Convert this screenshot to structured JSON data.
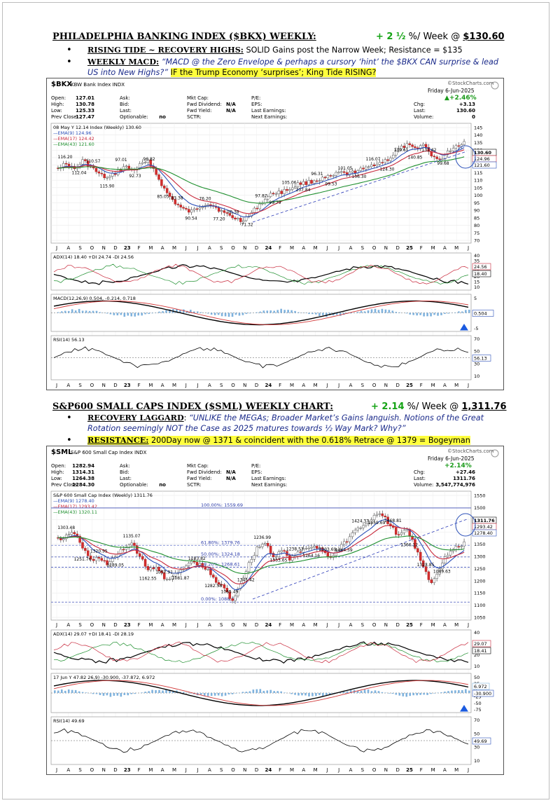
{
  "sections": [
    {
      "title": "PHILADELPHIA BANKING INDEX ($BKX) WEEKLY:",
      "gain_value": "+ 2 ½",
      "gain_suffix": " %/ Week @ ",
      "price": "$130.60",
      "bullets": [
        {
          "label": "RISING TIDE ~ RECOVERY HIGHS:",
          "text": " SOLID Gains post the Narrow Week; Resistance = $135"
        },
        {
          "label": "WEEKLY MACD:",
          "italic": " “MACD @ the Zero Envelope & perhaps a cursory ‘hint’ the $BKX CAN surprise & lead US into New Highs?”",
          "highlight": "IF the Trump Economy ‘surprises’; King Tide RISING?"
        }
      ]
    },
    {
      "title": "S&P600 SMALL CAPS INDEX ($SML) WEEKLY CHART:",
      "gain_value": "+ 2.14",
      "gain_suffix": " %/ Week @ ",
      "price": "1,311.76",
      "bullets": [
        {
          "label": "RECOVERY LAGGARD",
          "text": ": ",
          "italic": "“UNLIKE the MEGAs; Broader Market’s Gains languish. Notions of the Great Rotation seemingly NOT the Case as 2025 matures towards ½ Way Mark? Why?”"
        },
        {
          "label": "RESISTANCE:",
          "highlight": " 200Day now @ 1371 & coincident with the 0.618% Retrace @ 1379 =  Bogeyman"
        }
      ]
    }
  ],
  "charts": [
    {
      "ticker": "$BKX",
      "name": "KBW Bank Index INDX",
      "date": "Friday  6-Jun-2025",
      "change_pct": "▲+2.46%",
      "brand": "©StockCharts.com",
      "quote_left": [
        [
          "Open:",
          "127.01"
        ],
        [
          "High:",
          "130.78"
        ],
        [
          "Low:",
          "125.33"
        ],
        [
          "Prev Close:",
          "127.47"
        ]
      ],
      "quote_mid": [
        [
          "Ask:",
          ""
        ],
        [
          "Bid:",
          ""
        ],
        [
          "Last:",
          ""
        ],
        [
          "Optionable:",
          "no"
        ]
      ],
      "quote_mid2": [
        [
          "Mkt Cap:",
          ""
        ],
        [
          "Fwd Dividend:",
          "N/A"
        ],
        [
          "Fwd Yield:",
          "N/A"
        ],
        [
          "SCTR:",
          ""
        ]
      ],
      "quote_right": [
        [
          "P/E:",
          ""
        ],
        [
          "EPS:",
          ""
        ],
        [
          "Last Earnings:",
          ""
        ],
        [
          "Next Earnings:",
          ""
        ]
      ],
      "quote_far": [
        [
          "Chg:",
          "+3.13"
        ],
        [
          "Last:",
          "130.60"
        ],
        [
          "Volume:",
          "0"
        ]
      ],
      "legend": [
        "08 May Y 12.14 Index (Weekly) 130.60",
        "EMA(9) 124.96",
        "EMA(17) 124.42",
        "EMA(43) 121.60"
      ],
      "price_ticks": [
        "145",
        "140",
        "135",
        "130",
        "125",
        "120",
        "115",
        "110",
        "105",
        "100",
        "95",
        "90",
        "85",
        "80",
        "75",
        "70"
      ],
      "annotations": [
        "116.20",
        "112.04",
        "110.57",
        "115.90",
        "97.01",
        "92.73",
        "96.82",
        "85.05",
        "83.38",
        "90.54",
        "76.20",
        "77.20",
        "70.38",
        "71.32",
        "97.87",
        "99.79",
        "105.06",
        "107.84",
        "96.31",
        "99.53",
        "101.05",
        "106.30",
        "116.07",
        "124.30",
        "139.61",
        "140.85",
        "131.42",
        "99.68"
      ],
      "last_labels": [
        "130.60",
        "124.96",
        "121.60"
      ],
      "months": [
        "J",
        "A",
        "S",
        "O",
        "N",
        "D",
        "23",
        "F",
        "M",
        "A",
        "M",
        "J",
        "J",
        "A",
        "S",
        "O",
        "N",
        "D",
        "24",
        "F",
        "M",
        "A",
        "M",
        "J",
        "J",
        "A",
        "S",
        "O",
        "N",
        "D",
        "25",
        "F",
        "M",
        "A",
        "M",
        "J"
      ],
      "adx_label": "ADX(14) 18.40 +DI 24.74 -DI 24.56",
      "adx_ticks": [
        "40",
        "35",
        "30",
        "25",
        "20",
        "15",
        "10"
      ],
      "adx_values": [
        "24.56",
        "18.40"
      ],
      "macd_label": "MACD(12,26,9) 0.504, -0.214, 0.718",
      "macd_ticks": [
        "5",
        "0",
        "-5"
      ],
      "macd_value": "0.504",
      "rsi_label": "RSI(14) 56.13",
      "rsi_ticks": [
        "70",
        "50",
        "30",
        "10"
      ],
      "rsi_value": "56.13"
    },
    {
      "ticker": "$SML",
      "name": "S&P 600 Small Cap Index INDX",
      "date": "Friday  6-Jun-2025",
      "change_pct": "+2.14%",
      "brand": "©StockCharts.com",
      "quote_left": [
        [
          "Open:",
          "1282.94"
        ],
        [
          "High:",
          "1314.31"
        ],
        [
          "Low:",
          "1264.38"
        ],
        [
          "Prev Close:",
          "1284.30"
        ]
      ],
      "quote_mid": [
        [
          "Ask:",
          ""
        ],
        [
          "Bid:",
          ""
        ],
        [
          "Last:",
          ""
        ],
        [
          "Optionable:",
          "no"
        ]
      ],
      "quote_mid2": [
        [
          "Mkt Cap:",
          ""
        ],
        [
          "Fwd Dividend:",
          "N/A"
        ],
        [
          "Fwd Yield:",
          "N/A"
        ],
        [
          "SCTR:",
          ""
        ]
      ],
      "quote_right": [
        [
          "P/E:",
          ""
        ],
        [
          "EPS:",
          ""
        ],
        [
          "Last Earnings:",
          ""
        ],
        [
          "Next Earnings:",
          ""
        ]
      ],
      "quote_far": [
        [
          "Chg:",
          "+27.46"
        ],
        [
          "Last:",
          "1311.76"
        ],
        [
          "Volume:",
          "3,547,774,976"
        ]
      ],
      "legend": [
        "S&P 600 Small Cap Index (Weekly) 1311.76",
        "EMA(9) 1278.40",
        "EMA(17) 1293.42",
        "EMA(43) 1320.11"
      ],
      "price_ticks": [
        "1550",
        "1500",
        "1450",
        "1400",
        "1350",
        "1300",
        "1250",
        "1200",
        "1150",
        "1100",
        "1050"
      ],
      "fib_labels": [
        "100.00%: 1559.69",
        "61.80%: 1379.76",
        "50.00%: 1324.18",
        "38.20%: 1268.61",
        "0.00%: 1088.68"
      ],
      "annotations": [
        "1303.48",
        "1251.76",
        "1320.95",
        "1189.05",
        "1135.07",
        "1162.55",
        "1057.91",
        "1081.87",
        "1183.82",
        "1282.58",
        "1065.49",
        "1345.42",
        "1236.99",
        "1353.65",
        "1238.53",
        "1264.16",
        "1303.69",
        "1464.59",
        "1424.37",
        "1559.69",
        "1468.81",
        "1366.12",
        "1323.85",
        "1089.63"
      ],
      "last_labels": [
        "1311.76",
        "1293.42",
        "1278.40"
      ],
      "months": [
        "J",
        "A",
        "S",
        "O",
        "N",
        "D",
        "23",
        "F",
        "M",
        "A",
        "M",
        "J",
        "J",
        "A",
        "S",
        "O",
        "N",
        "D",
        "24",
        "F",
        "M",
        "A",
        "M",
        "J",
        "J",
        "A",
        "S",
        "O",
        "N",
        "D",
        "25",
        "F",
        "M",
        "A",
        "M",
        "J"
      ],
      "adx_label": "ADX(14) 29.07 +DI 18.41 -DI 28.19",
      "adx_ticks": [
        "40",
        "30",
        "20",
        "10"
      ],
      "adx_values": [
        "29.07",
        "18.41"
      ],
      "macd_label": "17 Jun Y 47.82 26,9) -30.900, -37.872, 6.972",
      "macd_ticks": [
        "50",
        "25",
        "0",
        "-25",
        "-50",
        "-75"
      ],
      "macd_value": "-30.900",
      "macd_value2": "6.972",
      "rsi_label": "RSI(14) 49.69",
      "rsi_ticks": [
        "70",
        "50",
        "30",
        "10"
      ],
      "rsi_value": "49.69"
    }
  ]
}
